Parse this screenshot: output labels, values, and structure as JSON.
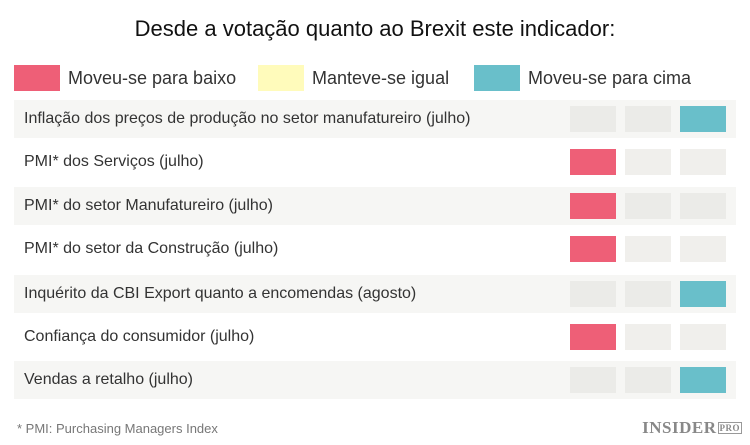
{
  "title": "Desde a votação quanto ao Brexit este indicador:",
  "colors": {
    "down": "#ee5f77",
    "same": "#fffbbb",
    "up": "#69bfca",
    "empty_shaded": "#ebebe8",
    "empty_white": "#f0efec"
  },
  "legend": [
    {
      "label": "Moveu-se para baixo",
      "color": "#ee5f77"
    },
    {
      "label": "Manteve-se igual",
      "color": "#fffbbb"
    },
    {
      "label": "Moveu-se para cima",
      "color": "#69bfca"
    }
  ],
  "rows": [
    {
      "label": "Inflação dos preços de produção no setor manufatureiro (julho)",
      "status": "up"
    },
    {
      "label": "PMI* dos Serviços (julho)",
      "status": "down"
    },
    {
      "label": "PMI* do setor Manufatureiro (julho)",
      "status": "down"
    },
    {
      "label": "PMI* do setor da Construção (julho)",
      "status": "down"
    },
    {
      "label": "Inquérito da CBI Export quanto a encomendas (agosto)",
      "status": "up"
    },
    {
      "label": "Confiança do consumidor (julho)",
      "status": "down"
    },
    {
      "label": "Vendas a retalho (julho)",
      "status": "up"
    }
  ],
  "footnote": "* PMI: Purchasing Managers Index",
  "logo": {
    "main": "INSIDER",
    "sub": "PRO"
  }
}
